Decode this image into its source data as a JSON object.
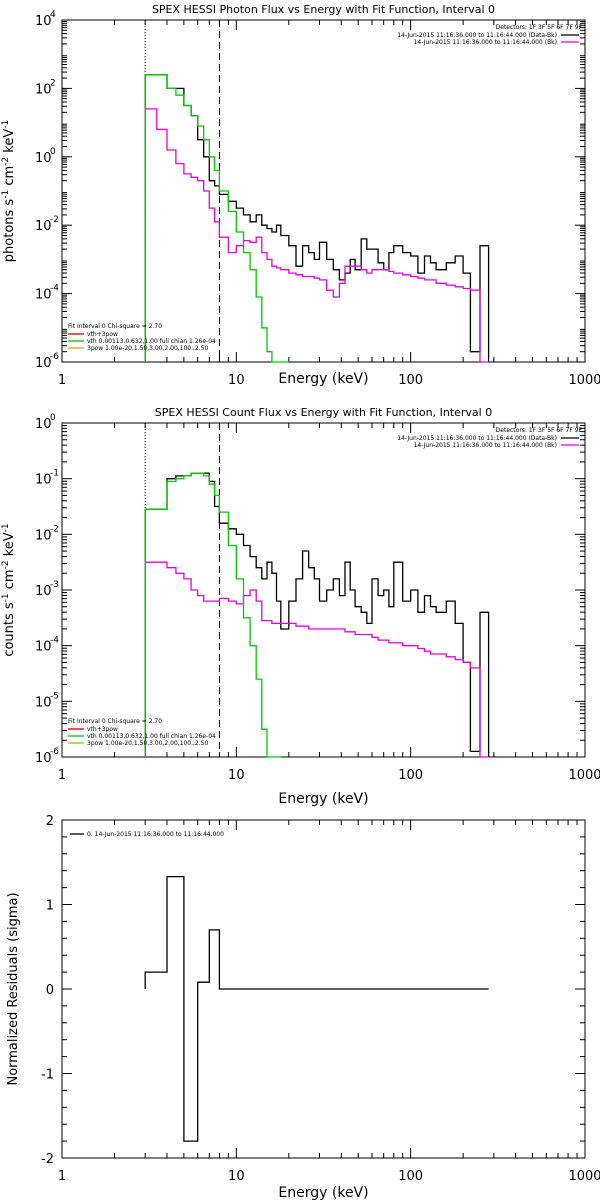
{
  "chart_data": [
    {
      "type": "line",
      "title": "SPEX HESSI Photon Flux vs Energy with Fit Function, Interval 0",
      "xlabel": "Energy (keV)",
      "ylabel_parts": [
        "photons s",
        "-1",
        " cm",
        "-2",
        " keV",
        "-1"
      ],
      "xscale": "log",
      "yscale": "log",
      "xlim": [
        1,
        1000
      ],
      "ylim_exp": [
        -6,
        4
      ],
      "xticks": [
        {
          "v": 1,
          "label": "1"
        },
        {
          "v": 10,
          "label": "10"
        },
        {
          "v": 100,
          "label": "100"
        },
        {
          "v": 1000,
          "label": "1000"
        }
      ],
      "yticks": [
        {
          "e": -6,
          "base": "10",
          "exp": "-6"
        },
        {
          "e": -4,
          "base": "10",
          "exp": "-4"
        },
        {
          "e": -2,
          "base": "10",
          "exp": "-2"
        },
        {
          "e": 0,
          "base": "10",
          "exp": "0"
        },
        {
          "e": 2,
          "base": "10",
          "exp": "2"
        },
        {
          "e": 4,
          "base": "10",
          "exp": "4"
        }
      ],
      "vlines": [
        {
          "x": 3.0,
          "style": "dotted"
        },
        {
          "x": 8.0,
          "style": "dashed"
        }
      ],
      "legend_topright": {
        "detectors": "Detectors: 1F 3F 5F 6F 7F 9F",
        "entries": [
          {
            "label": "14-Jun-2015 11:16:36.000 to 11:16:44.000 (Data-Bk)",
            "color": "#000000"
          },
          {
            "label": "14-Jun-2015 11:16:36.000 to 11:16:44.000 (Bk)",
            "color": "#e600e6"
          }
        ]
      },
      "legend_bottomleft": {
        "header": "Fit Interval 0   Chi-square = 2.70",
        "entries": [
          {
            "label": "vth+3pow",
            "color": "#cc0000"
          },
          {
            "label": "vth 0.00113,0.632,1.00   full chian 1.26e-04",
            "color": "#00cc00"
          },
          {
            "label": "3pow 1.00e-20,1.50,3.00,2.00,100.,2.50",
            "color": "#ccaa00"
          }
        ]
      },
      "series": [
        {
          "name": "Data-Bk",
          "color": "#000000",
          "edges": [
            3.0,
            3.5,
            4.0,
            4.5,
            5.0,
            5.5,
            6.0,
            6.5,
            7.0,
            7.5,
            8.0,
            9.0,
            10.0,
            11.0,
            12.0,
            13.0,
            14.0,
            15.0,
            16.0,
            17.0,
            18.0,
            20.0,
            22.0,
            24.0,
            26.0,
            28.0,
            30.0,
            33.0,
            36.0,
            39.0,
            42.0,
            45.0,
            48.0,
            52.0,
            56.0,
            60.0,
            65.0,
            70.0,
            75.0,
            80.0,
            90.0,
            100.0,
            110.0,
            120.0,
            130.0,
            140.0,
            160.0,
            180.0,
            200.0,
            220.0,
            250.0,
            280.0
          ],
          "logy": [
            2.4,
            2.4,
            2.0,
            2.0,
            1.5,
            1.2,
            0.5,
            0.0,
            -0.7,
            -0.85,
            -1.1,
            -1.3,
            -1.5,
            -1.7,
            -1.9,
            -1.7,
            -2.0,
            -2.1,
            -2.2,
            -2.0,
            -2.3,
            -2.6,
            -3.2,
            -2.6,
            -2.8,
            -3.0,
            -2.5,
            -3.0,
            -3.3,
            -3.6,
            -3.4,
            -3.0,
            -3.3,
            -2.4,
            -2.7,
            -2.7,
            -3.1,
            -3.3,
            -2.8,
            -2.6,
            -2.8,
            -2.9,
            -3.4,
            -2.9,
            -3.1,
            -3.3,
            -3.1,
            -2.9,
            -3.4,
            -5.7,
            -2.6
          ]
        },
        {
          "name": "Bk",
          "color": "#e600e6",
          "edges": [
            3.0,
            3.5,
            4.0,
            4.5,
            5.0,
            5.5,
            6.0,
            6.5,
            7.0,
            7.5,
            8.0,
            9.0,
            10.0,
            11.0,
            12.0,
            13.0,
            14.0,
            15.0,
            16.0,
            17.0,
            18.0,
            20.0,
            22.0,
            24.0,
            26.0,
            28.0,
            30.0,
            33.0,
            36.0,
            39.0,
            42.0,
            45.0,
            48.0,
            52.0,
            56.0,
            60.0,
            65.0,
            70.0,
            75.0,
            80.0,
            90.0,
            100.0,
            110.0,
            120.0,
            130.0,
            140.0,
            160.0,
            180.0,
            200.0,
            220.0,
            250.0,
            280.0
          ],
          "logy": [
            1.4,
            0.8,
            0.2,
            -0.2,
            -0.5,
            -0.6,
            -0.7,
            -1.0,
            -1.5,
            -1.9,
            -2.35,
            -2.8,
            -2.6,
            -2.45,
            -2.5,
            -2.35,
            -2.8,
            -3.0,
            -3.2,
            -3.25,
            -3.3,
            -3.4,
            -3.45,
            -3.5,
            -3.5,
            -3.55,
            -3.6,
            -3.9,
            -4.1,
            -3.7,
            -3.2,
            -3.2,
            -3.2,
            -3.3,
            -3.4,
            -3.3,
            -3.3,
            -3.3,
            -3.35,
            -3.4,
            -3.45,
            -3.5,
            -3.55,
            -3.6,
            -3.6,
            -3.7,
            -3.75,
            -3.8,
            -3.85,
            -3.9,
            -6.0
          ]
        },
        {
          "name": "vth",
          "color": "#00cc00",
          "edges": [
            3.0,
            3.5,
            4.0,
            4.5,
            5.0,
            5.5,
            6.0,
            6.5,
            7.0,
            7.5,
            8.0,
            9.0,
            10.0,
            11.0,
            12.0,
            13.0,
            14.0,
            15.0,
            16.0,
            17.0,
            18.0,
            20.0
          ],
          "logy": [
            2.4,
            2.4,
            2.0,
            1.8,
            1.5,
            1.2,
            0.9,
            0.5,
            0.0,
            -0.4,
            -1.0,
            -1.6,
            -2.2,
            -2.8,
            -3.3,
            -4.1,
            -5.0,
            -5.7,
            -6.0,
            -6.2,
            -6.5
          ]
        }
      ]
    },
    {
      "type": "line",
      "title": "SPEX HESSI Count Flux vs Energy with Fit Function, Interval 0",
      "xlabel": "Energy (keV)",
      "ylabel_parts": [
        "counts s",
        "-1",
        " cm",
        "-2",
        " keV",
        "-1"
      ],
      "xscale": "log",
      "yscale": "log",
      "xlim": [
        1,
        1000
      ],
      "ylim_exp": [
        -6,
        0
      ],
      "xticks": [
        {
          "v": 1,
          "label": "1"
        },
        {
          "v": 10,
          "label": "10"
        },
        {
          "v": 100,
          "label": "100"
        },
        {
          "v": 1000,
          "label": "1000"
        }
      ],
      "yticks": [
        {
          "e": -6,
          "base": "10",
          "exp": "-6"
        },
        {
          "e": -5,
          "base": "10",
          "exp": "-5"
        },
        {
          "e": -4,
          "base": "10",
          "exp": "-4"
        },
        {
          "e": -3,
          "base": "10",
          "exp": "-3"
        },
        {
          "e": -2,
          "base": "10",
          "exp": "-2"
        },
        {
          "e": -1,
          "base": "10",
          "exp": "-1"
        },
        {
          "e": 0,
          "base": "10",
          "exp": "0"
        }
      ],
      "vlines": [
        {
          "x": 3.0,
          "style": "dotted"
        },
        {
          "x": 8.0,
          "style": "dashed"
        }
      ],
      "legend_topright": {
        "detectors": "Detectors: 1F 3F 5F 6F 7F 9F",
        "entries": [
          {
            "label": "14-Jun-2015 11:16:36.000 to 11:16:44.000 (Data-Bk)",
            "color": "#000000"
          },
          {
            "label": "14-Jun-2015 11:16:36.000 to 11:16:44.000 (Bk)",
            "color": "#e600e6"
          }
        ]
      },
      "legend_bottomleft": {
        "header": "Fit Interval 0   Chi-square = 2.70",
        "entries": [
          {
            "label": "vth+3pow",
            "color": "#cc0000"
          },
          {
            "label": "vth 0.00113,0.632,1.00   full chian 1.26e-04",
            "color": "#00cc00"
          },
          {
            "label": "3pow 1.00e-20,1.50,3.00,2.00,100.,2.50",
            "color": "#ccaa00"
          }
        ]
      },
      "series": [
        {
          "name": "Data-Bk",
          "color": "#000000",
          "edges": [
            3.0,
            3.5,
            4.0,
            4.5,
            5.0,
            5.5,
            6.0,
            6.5,
            7.0,
            7.5,
            8.0,
            9.0,
            10.0,
            11.0,
            12.0,
            13.0,
            14.0,
            15.0,
            16.0,
            17.0,
            18.0,
            20.0,
            22.0,
            24.0,
            26.0,
            28.0,
            30.0,
            33.0,
            36.0,
            39.0,
            42.0,
            45.0,
            48.0,
            52.0,
            56.0,
            60.0,
            65.0,
            70.0,
            75.0,
            80.0,
            90.0,
            100.0,
            110.0,
            120.0,
            130.0,
            140.0,
            160.0,
            180.0,
            200.0,
            220.0,
            250.0,
            280.0
          ],
          "logy": [
            -1.55,
            -1.55,
            -1.0,
            -0.95,
            -0.95,
            -0.9,
            -0.9,
            -0.9,
            -1.05,
            -1.5,
            -1.8,
            -1.9,
            -2.0,
            -2.2,
            -2.4,
            -2.6,
            -2.8,
            -2.5,
            -2.7,
            -3.2,
            -3.7,
            -3.2,
            -2.8,
            -2.3,
            -2.6,
            -2.8,
            -3.2,
            -3.0,
            -2.8,
            -3.1,
            -2.5,
            -3.0,
            -3.3,
            -3.4,
            -3.6,
            -2.8,
            -3.1,
            -3.0,
            -3.3,
            -2.5,
            -3.2,
            -3.0,
            -3.4,
            -3.1,
            -3.3,
            -3.4,
            -3.2,
            -3.6,
            -4.3,
            -5.9,
            -3.4
          ]
        },
        {
          "name": "Bk",
          "color": "#e600e6",
          "edges": [
            3.0,
            3.5,
            4.0,
            4.5,
            5.0,
            5.5,
            6.0,
            6.5,
            7.0,
            7.5,
            8.0,
            9.0,
            10.0,
            11.0,
            12.0,
            13.0,
            14.0,
            15.0,
            16.0,
            17.0,
            18.0,
            20.0,
            22.0,
            24.0,
            26.0,
            28.0,
            30.0,
            33.0,
            36.0,
            39.0,
            42.0,
            45.0,
            48.0,
            52.0,
            56.0,
            60.0,
            65.0,
            70.0,
            75.0,
            80.0,
            90.0,
            100.0,
            110.0,
            120.0,
            130.0,
            140.0,
            160.0,
            180.0,
            200.0,
            220.0,
            250.0,
            280.0
          ],
          "logy": [
            -2.5,
            -2.5,
            -2.6,
            -2.7,
            -2.8,
            -3.0,
            -3.1,
            -3.2,
            -3.2,
            -3.2,
            -3.15,
            -3.2,
            -3.25,
            -3.1,
            -3.0,
            -3.2,
            -3.55,
            -3.55,
            -3.6,
            -3.6,
            -3.6,
            -3.6,
            -3.65,
            -3.65,
            -3.7,
            -3.7,
            -3.7,
            -3.7,
            -3.7,
            -3.7,
            -3.75,
            -3.75,
            -3.8,
            -3.8,
            -3.8,
            -3.85,
            -3.9,
            -3.9,
            -3.95,
            -3.95,
            -4.0,
            -4.0,
            -4.05,
            -4.1,
            -4.15,
            -4.15,
            -4.2,
            -4.25,
            -4.3,
            -4.4,
            -6.0
          ]
        },
        {
          "name": "vth",
          "color": "#00cc00",
          "edges": [
            3.0,
            3.5,
            4.0,
            4.5,
            5.0,
            5.5,
            6.0,
            6.5,
            7.0,
            7.5,
            8.0,
            9.0,
            10.0,
            11.0,
            12.0,
            13.0,
            14.0,
            15.0,
            16.0,
            17.0,
            18.0
          ],
          "logy": [
            -1.55,
            -1.55,
            -1.05,
            -1.0,
            -0.95,
            -0.9,
            -0.9,
            -0.95,
            -1.1,
            -1.3,
            -1.6,
            -2.2,
            -2.8,
            -3.5,
            -4.0,
            -4.6,
            -5.5,
            -6.2,
            -6.6,
            -7.0
          ]
        }
      ]
    },
    {
      "type": "line",
      "title": "",
      "xlabel": "Energy (keV)",
      "ylabel": "Normalized Residuals (sigma)",
      "xscale": "log",
      "yscale": "linear",
      "xlim": [
        1,
        1000
      ],
      "ylim": [
        -2,
        2
      ],
      "xticks": [
        {
          "v": 1,
          "label": "1"
        },
        {
          "v": 10,
          "label": "10"
        },
        {
          "v": 100,
          "label": "100"
        },
        {
          "v": 1000,
          "label": "1000"
        }
      ],
      "yticks": [
        {
          "v": -2,
          "label": "-2"
        },
        {
          "v": -1,
          "label": "-1"
        },
        {
          "v": 0,
          "label": "0"
        },
        {
          "v": 1,
          "label": "1"
        },
        {
          "v": 2,
          "label": "2"
        }
      ],
      "legend": {
        "label": "0. 14-Jun-2015 11:16:36.000 to 11:16:44.000",
        "color": "#000000"
      },
      "series": [
        {
          "name": "residuals",
          "color": "#000000",
          "edges": [
            3.0,
            4.0,
            5.0,
            6.0,
            7.0,
            8.0,
            280.0
          ],
          "values": [
            0.2,
            1.33,
            -1.8,
            0.08,
            0.7,
            0.0
          ]
        }
      ]
    }
  ]
}
